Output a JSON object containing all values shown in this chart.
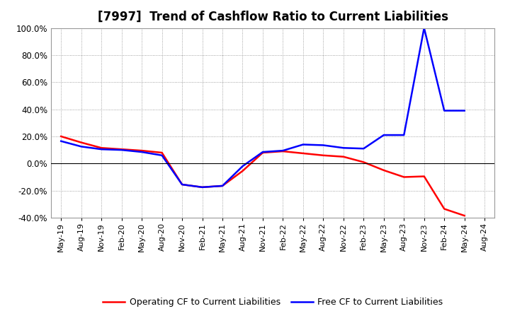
{
  "title": "[7997]  Trend of Cashflow Ratio to Current Liabilities",
  "x_labels": [
    "May-19",
    "Aug-19",
    "Nov-19",
    "Feb-20",
    "May-20",
    "Aug-20",
    "Nov-20",
    "Feb-21",
    "May-21",
    "Aug-21",
    "Nov-21",
    "Feb-22",
    "May-22",
    "Aug-22",
    "Nov-22",
    "Feb-23",
    "May-23",
    "Aug-23",
    "Nov-23",
    "Feb-24",
    "May-24",
    "Aug-24"
  ],
  "operating_cf": [
    0.2,
    0.155,
    0.115,
    0.105,
    0.095,
    0.08,
    -0.155,
    -0.175,
    -0.165,
    -0.055,
    0.08,
    0.09,
    0.075,
    0.06,
    0.05,
    0.01,
    -0.05,
    -0.1,
    -0.095,
    -0.335,
    -0.385,
    null
  ],
  "free_cf": [
    0.165,
    0.125,
    0.105,
    0.1,
    0.085,
    0.06,
    -0.155,
    -0.175,
    -0.165,
    -0.02,
    0.085,
    0.095,
    0.14,
    0.135,
    0.115,
    0.11,
    0.21,
    0.21,
    1.0,
    0.39,
    0.39,
    null
  ],
  "operating_color": "#ff0000",
  "free_color": "#0000ff",
  "ylim": [
    -0.4,
    1.0
  ],
  "yticks": [
    -0.4,
    -0.2,
    0.0,
    0.2,
    0.4,
    0.6,
    0.8,
    1.0
  ],
  "background_color": "#ffffff",
  "grid_color": "#888888",
  "title_fontsize": 12
}
